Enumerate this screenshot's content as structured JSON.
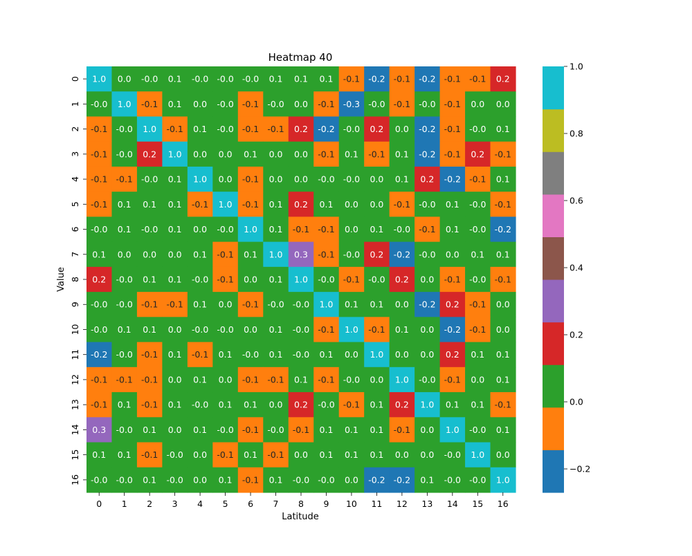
{
  "chart_data": {
    "type": "heatmap",
    "title": "Heatmap 40",
    "xlabel": "Latitude",
    "ylabel": "Value",
    "x_categories": [
      "0",
      "1",
      "2",
      "3",
      "4",
      "5",
      "6",
      "7",
      "8",
      "9",
      "10",
      "11",
      "12",
      "13",
      "14",
      "15",
      "16"
    ],
    "y_categories": [
      "0",
      "1",
      "2",
      "3",
      "4",
      "5",
      "6",
      "7",
      "8",
      "9",
      "10",
      "11",
      "12",
      "13",
      "14",
      "15",
      "16"
    ],
    "annotations": [
      [
        "1.0",
        "0.0",
        "-0.0",
        "0.1",
        "-0.0",
        "-0.0",
        "-0.0",
        "0.1",
        "0.1",
        "0.1",
        "-0.1",
        "-0.2",
        "-0.1",
        "-0.2",
        "-0.1",
        "-0.1",
        "0.2"
      ],
      [
        "-0.0",
        "1.0",
        "-0.1",
        "0.1",
        "0.0",
        "-0.0",
        "-0.1",
        "-0.0",
        "0.0",
        "-0.1",
        "-0.3",
        "-0.0",
        "-0.1",
        "-0.0",
        "-0.1",
        "0.0",
        "0.0"
      ],
      [
        "-0.1",
        "-0.0",
        "1.0",
        "-0.1",
        "0.1",
        "-0.0",
        "-0.1",
        "-0.1",
        "0.2",
        "-0.2",
        "-0.0",
        "0.2",
        "0.0",
        "-0.2",
        "-0.1",
        "-0.0",
        "0.1"
      ],
      [
        "-0.1",
        "-0.0",
        "0.2",
        "1.0",
        "0.0",
        "0.0",
        "0.1",
        "0.0",
        "0.0",
        "-0.1",
        "0.1",
        "-0.1",
        "0.1",
        "-0.2",
        "-0.1",
        "0.2",
        "-0.1"
      ],
      [
        "-0.1",
        "-0.1",
        "-0.0",
        "0.1",
        "1.0",
        "0.0",
        "-0.1",
        "0.0",
        "0.0",
        "-0.0",
        "-0.0",
        "0.0",
        "0.1",
        "0.2",
        "-0.2",
        "-0.1",
        "0.1"
      ],
      [
        "-0.1",
        "0.1",
        "0.1",
        "0.1",
        "-0.1",
        "1.0",
        "-0.1",
        "0.1",
        "0.2",
        "0.1",
        "0.0",
        "0.0",
        "-0.1",
        "-0.0",
        "0.1",
        "-0.0",
        "-0.1"
      ],
      [
        "-0.0",
        "0.1",
        "-0.0",
        "0.1",
        "0.0",
        "-0.0",
        "1.0",
        "0.1",
        "-0.1",
        "-0.1",
        "0.0",
        "0.1",
        "-0.0",
        "-0.1",
        "0.1",
        "-0.0",
        "-0.2"
      ],
      [
        "0.1",
        "0.0",
        "0.0",
        "0.0",
        "0.1",
        "-0.1",
        "0.1",
        "1.0",
        "0.3",
        "-0.1",
        "-0.0",
        "0.2",
        "-0.2",
        "-0.0",
        "0.0",
        "0.1",
        "0.1"
      ],
      [
        "0.2",
        "-0.0",
        "0.1",
        "0.1",
        "-0.0",
        "-0.1",
        "0.0",
        "0.1",
        "1.0",
        "-0.0",
        "-0.1",
        "-0.0",
        "0.2",
        "0.0",
        "-0.1",
        "-0.0",
        "-0.1"
      ],
      [
        "-0.0",
        "-0.0",
        "-0.1",
        "-0.1",
        "0.1",
        "0.0",
        "-0.1",
        "-0.0",
        "-0.0",
        "1.0",
        "0.1",
        "0.1",
        "0.0",
        "-0.2",
        "0.2",
        "-0.1",
        "0.0"
      ],
      [
        "-0.0",
        "0.1",
        "0.1",
        "0.0",
        "-0.0",
        "-0.0",
        "0.0",
        "0.1",
        "-0.0",
        "-0.1",
        "1.0",
        "-0.1",
        "0.1",
        "0.0",
        "-0.2",
        "-0.1",
        "0.0"
      ],
      [
        "-0.2",
        "-0.0",
        "-0.1",
        "0.1",
        "-0.1",
        "0.1",
        "-0.0",
        "0.1",
        "-0.0",
        "0.1",
        "0.0",
        "1.0",
        "0.0",
        "0.0",
        "0.2",
        "0.1",
        "0.1"
      ],
      [
        "-0.1",
        "-0.1",
        "-0.1",
        "0.0",
        "0.1",
        "0.0",
        "-0.1",
        "-0.1",
        "0.1",
        "-0.1",
        "-0.0",
        "0.0",
        "1.0",
        "-0.0",
        "-0.1",
        "0.0",
        "0.1"
      ],
      [
        "-0.1",
        "0.1",
        "-0.1",
        "0.1",
        "-0.0",
        "0.1",
        "0.1",
        "0.0",
        "0.2",
        "-0.0",
        "-0.1",
        "0.1",
        "0.2",
        "1.0",
        "0.1",
        "0.1",
        "-0.1"
      ],
      [
        "0.3",
        "-0.0",
        "0.1",
        "0.0",
        "0.1",
        "-0.0",
        "-0.1",
        "-0.0",
        "-0.1",
        "0.1",
        "0.1",
        "0.1",
        "-0.1",
        "0.0",
        "1.0",
        "-0.0",
        "0.1"
      ],
      [
        "0.1",
        "0.1",
        "-0.1",
        "-0.0",
        "0.0",
        "-0.1",
        "0.1",
        "-0.1",
        "0.0",
        "0.1",
        "0.1",
        "0.1",
        "0.0",
        "0.0",
        "-0.0",
        "1.0",
        "0.0"
      ],
      [
        "-0.0",
        "-0.0",
        "0.1",
        "-0.0",
        "0.0",
        "0.1",
        "-0.1",
        "0.1",
        "-0.0",
        "-0.0",
        "0.0",
        "-0.2",
        "-0.2",
        "0.1",
        "-0.0",
        "-0.0",
        "1.0"
      ]
    ],
    "colormap": {
      "vmin": -0.27,
      "vmax": 1.0,
      "colors": [
        "#1f77b4",
        "#ff7f0e",
        "#2ca02c",
        "#d62728",
        "#9467bd",
        "#8c564b",
        "#e377c2",
        "#7f7f7f",
        "#bcbd22",
        "#17becf"
      ]
    },
    "colorbar": {
      "ticks": [
        1.0,
        0.8,
        0.6,
        0.4,
        0.2,
        0.0,
        -0.2
      ],
      "tick_labels": [
        "1.0",
        "0.8",
        "0.6",
        "0.4",
        "0.2",
        "0.0",
        "−0.2"
      ]
    }
  }
}
